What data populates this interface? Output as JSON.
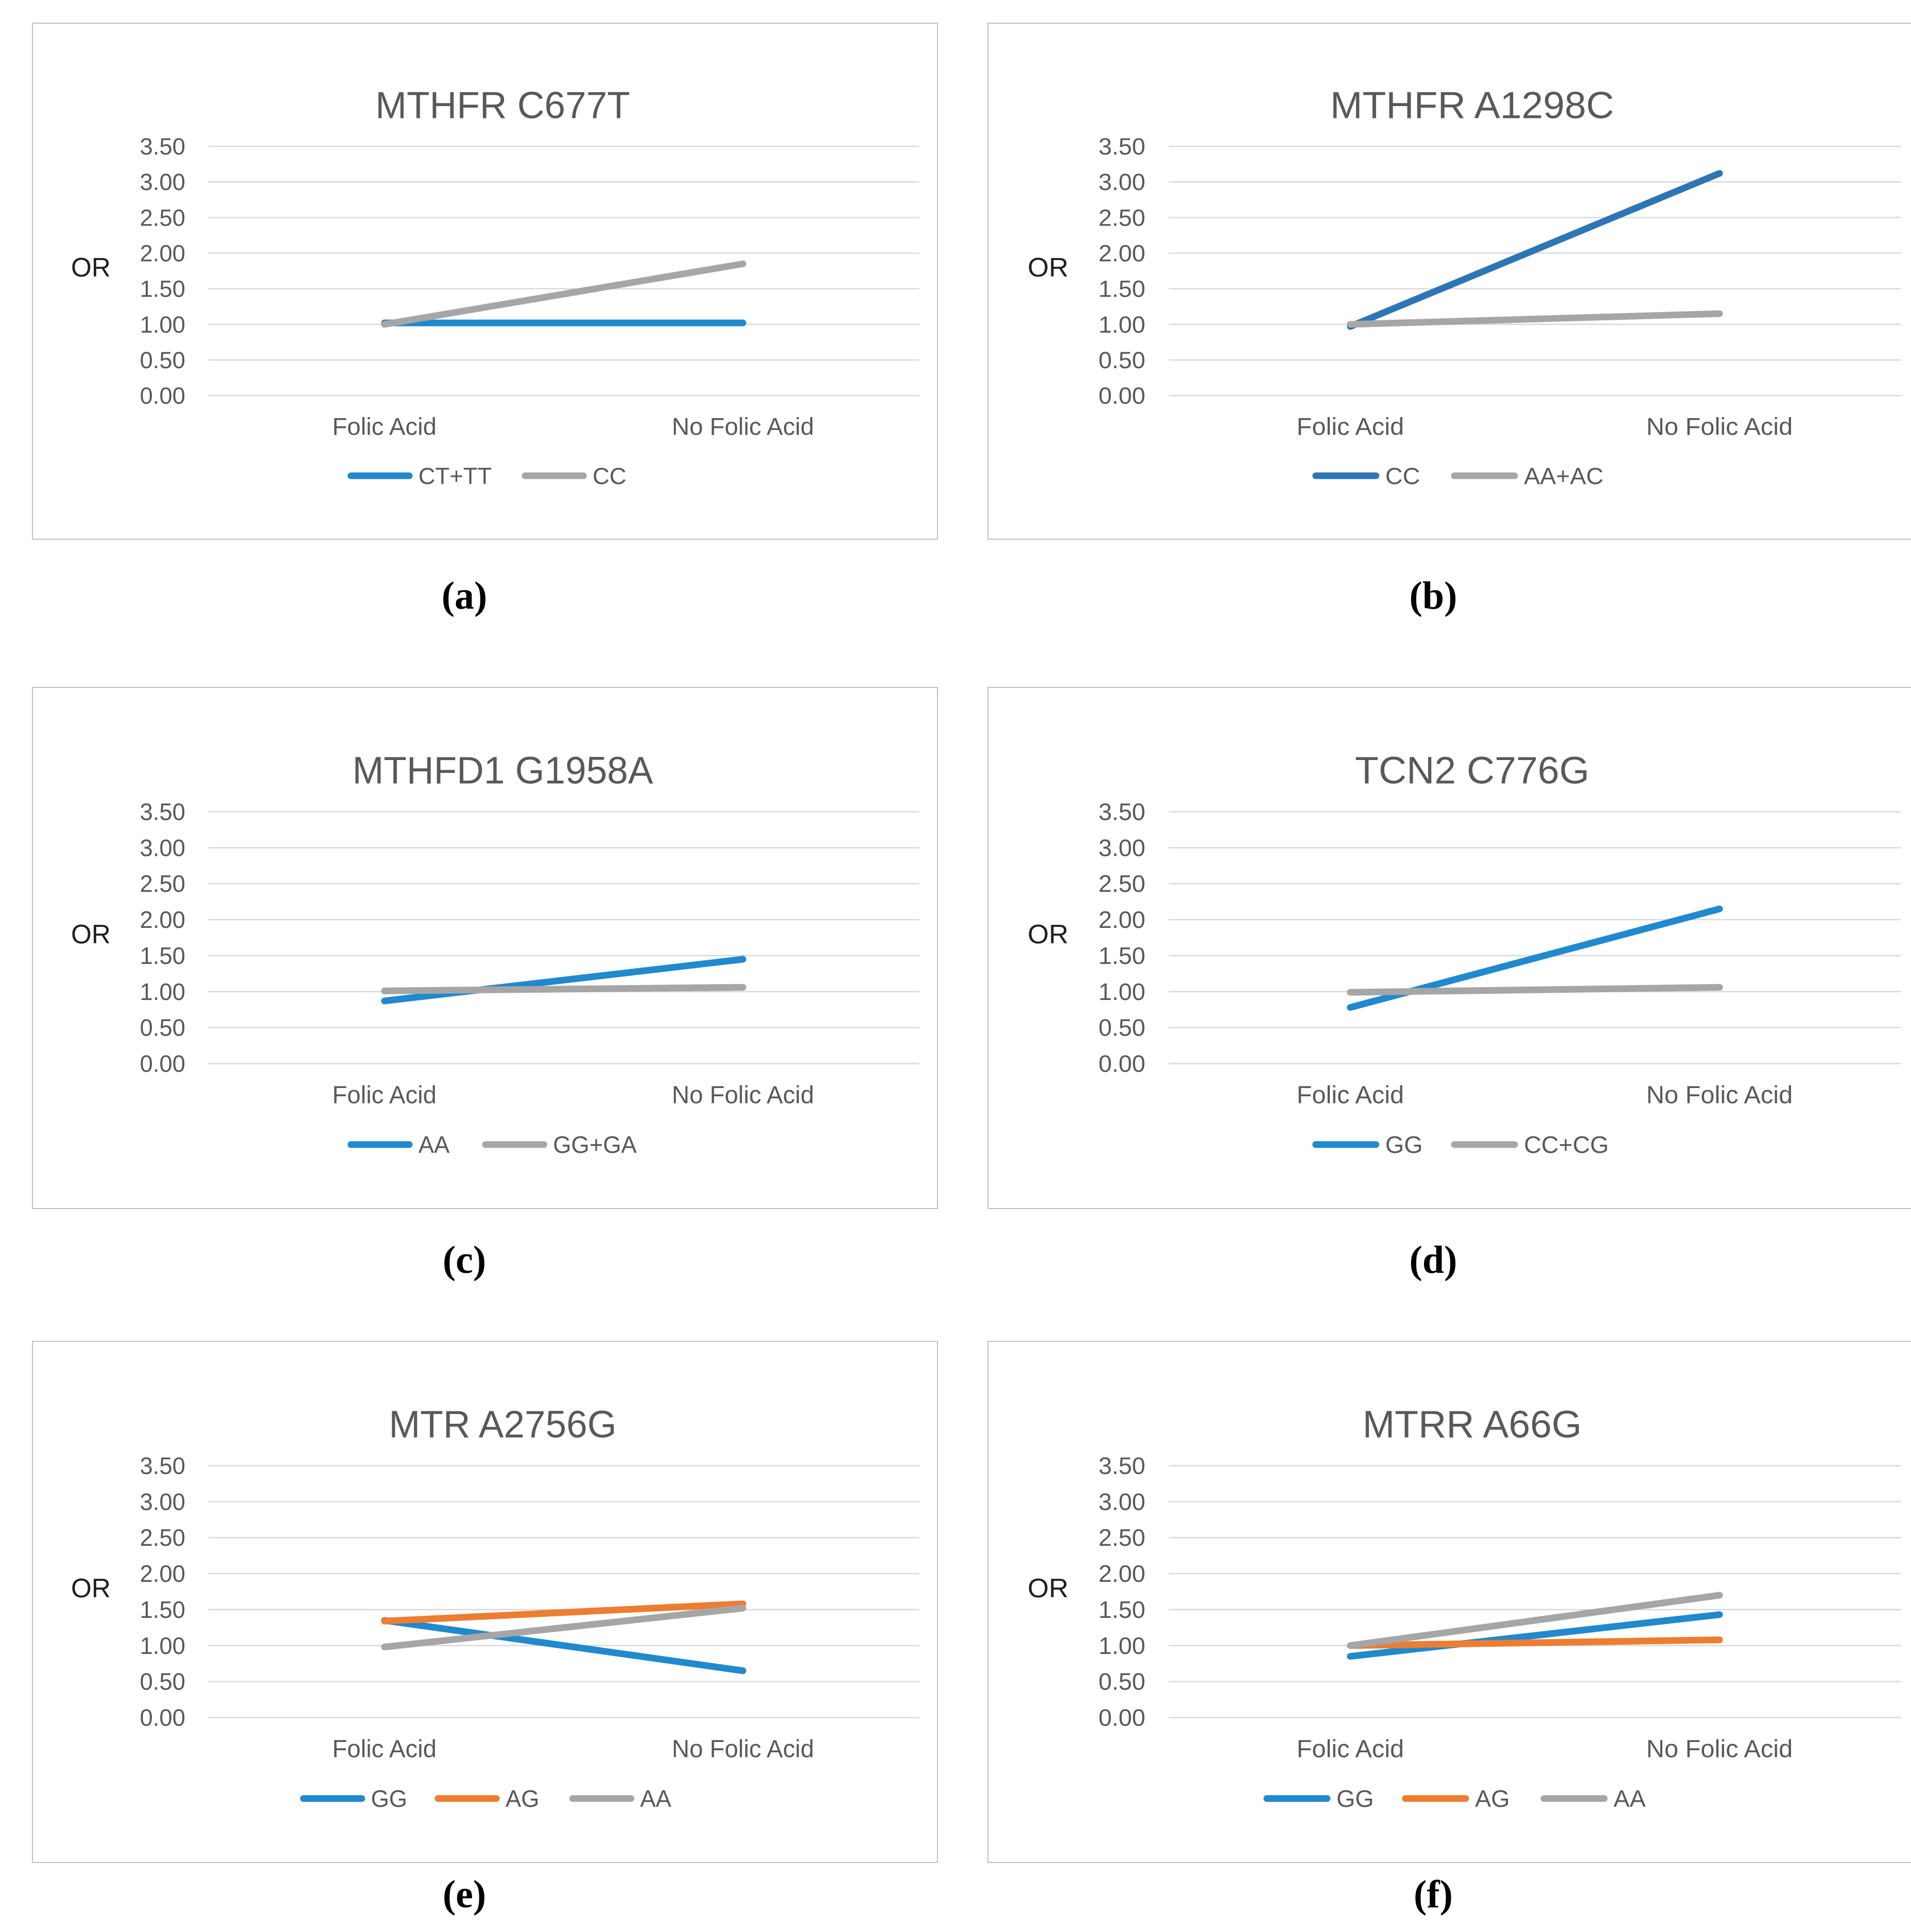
{
  "figure": {
    "x_axis_categories": [
      "Folic Acid",
      "No Folic Acid"
    ],
    "y_axis_title": "OR",
    "y_tick_labels": [
      "3.50",
      "3.00",
      "2.50",
      "2.00",
      "1.50",
      "1.00",
      "0.50",
      "0.00"
    ],
    "panel_labels": [
      "(a)",
      "(b)",
      "(c)",
      "(d)",
      "(e)",
      "(f)"
    ]
  },
  "colors": {
    "light_blue": "#2189CE",
    "dark_blue": "#2E75B6",
    "orange": "#ED7D31",
    "gray_series": "#A6A6A6",
    "chart_text": "#595959",
    "axis_title_text": "#1f1f1f",
    "gridline": "#D9D9D9",
    "panel_border": "#BFBFBF"
  },
  "chart_data": [
    {
      "id": "a",
      "type": "line",
      "title": "MTHFR C677T",
      "panel_label": "(a)",
      "categories": [
        "Folic Acid",
        "No Folic Acid"
      ],
      "series": [
        {
          "name": "CT+TT",
          "color": "#2189CE",
          "values": [
            1.02,
            1.02
          ]
        },
        {
          "name": "CC",
          "color": "#A6A6A6",
          "values": [
            1.0,
            1.85
          ]
        }
      ],
      "xlabel": "",
      "ylabel": "OR",
      "ylim": [
        0,
        3.5
      ],
      "ytick_labels": [
        "3.50",
        "3.00",
        "2.50",
        "2.00",
        "1.50",
        "1.00",
        "0.50",
        "0.00"
      ],
      "grid": true,
      "legend_position": "bottom"
    },
    {
      "id": "b",
      "type": "line",
      "title": "MTHFR A1298C",
      "panel_label": "(b)",
      "categories": [
        "Folic Acid",
        "No Folic Acid"
      ],
      "series": [
        {
          "name": "CC",
          "color": "#2E75B6",
          "values": [
            0.97,
            3.12
          ]
        },
        {
          "name": "AA+AC",
          "color": "#A6A6A6",
          "values": [
            1.0,
            1.15
          ]
        }
      ],
      "xlabel": "",
      "ylabel": "OR",
      "ylim": [
        0,
        3.5
      ],
      "ytick_labels": [
        "3.50",
        "3.00",
        "2.50",
        "2.00",
        "1.50",
        "1.00",
        "0.50",
        "0.00"
      ],
      "grid": true,
      "legend_position": "bottom"
    },
    {
      "id": "c",
      "type": "line",
      "title": "MTHFD1 G1958A",
      "panel_label": "(c)",
      "categories": [
        "Folic Acid",
        "No Folic Acid"
      ],
      "series": [
        {
          "name": "AA",
          "color": "#2189CE",
          "values": [
            0.87,
            1.45
          ]
        },
        {
          "name": "GG+GA",
          "color": "#A6A6A6",
          "values": [
            1.01,
            1.06
          ]
        }
      ],
      "xlabel": "",
      "ylabel": "OR",
      "ylim": [
        0,
        3.5
      ],
      "ytick_labels": [
        "3.50",
        "3.00",
        "2.50",
        "2.00",
        "1.50",
        "1.00",
        "0.50",
        "0.00"
      ],
      "grid": true,
      "legend_position": "bottom"
    },
    {
      "id": "d",
      "type": "line",
      "title": "TCN2 C776G",
      "panel_label": "(d)",
      "categories": [
        "Folic Acid",
        "No Folic Acid"
      ],
      "series": [
        {
          "name": "GG",
          "color": "#2189CE",
          "values": [
            0.78,
            2.15
          ]
        },
        {
          "name": "CC+CG",
          "color": "#A6A6A6",
          "values": [
            0.99,
            1.06
          ]
        }
      ],
      "xlabel": "",
      "ylabel": "OR",
      "ylim": [
        0,
        3.5
      ],
      "ytick_labels": [
        "3.50",
        "3.00",
        "2.50",
        "2.00",
        "1.50",
        "1.00",
        "0.50",
        "0.00"
      ],
      "grid": true,
      "legend_position": "bottom"
    },
    {
      "id": "e",
      "type": "line",
      "title": "MTR A2756G",
      "panel_label": "(e)",
      "categories": [
        "Folic Acid",
        "No Folic Acid"
      ],
      "series": [
        {
          "name": "GG",
          "color": "#2189CE",
          "values": [
            1.35,
            0.65
          ]
        },
        {
          "name": "AG",
          "color": "#ED7D31",
          "values": [
            1.34,
            1.58
          ]
        },
        {
          "name": "AA",
          "color": "#A6A6A6",
          "values": [
            0.98,
            1.52
          ]
        }
      ],
      "xlabel": "",
      "ylabel": "OR",
      "ylim": [
        0,
        3.5
      ],
      "ytick_labels": [
        "3.50",
        "3.00",
        "2.50",
        "2.00",
        "1.50",
        "1.00",
        "0.50",
        "0.00"
      ],
      "grid": true,
      "legend_position": "bottom"
    },
    {
      "id": "f",
      "type": "line",
      "title": "MTRR A66G",
      "panel_label": "(f)",
      "categories": [
        "Folic Acid",
        "No Folic Acid"
      ],
      "series": [
        {
          "name": "GG",
          "color": "#2189CE",
          "values": [
            0.85,
            1.43
          ]
        },
        {
          "name": "AG",
          "color": "#ED7D31",
          "values": [
            1.0,
            1.08
          ]
        },
        {
          "name": "AA",
          "color": "#A6A6A6",
          "values": [
            1.0,
            1.7
          ]
        }
      ],
      "xlabel": "",
      "ylabel": "OR",
      "ylim": [
        0,
        3.5
      ],
      "ytick_labels": [
        "3.50",
        "3.00",
        "2.50",
        "2.00",
        "1.50",
        "1.00",
        "0.50",
        "0.00"
      ],
      "grid": true,
      "legend_position": "bottom"
    }
  ]
}
